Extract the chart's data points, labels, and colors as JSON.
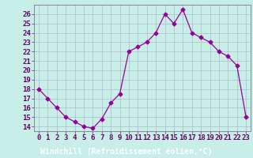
{
  "x": [
    0,
    1,
    2,
    3,
    4,
    5,
    6,
    7,
    8,
    9,
    10,
    11,
    12,
    13,
    14,
    15,
    16,
    17,
    18,
    19,
    20,
    21,
    22,
    23
  ],
  "y": [
    18,
    17,
    16,
    15,
    14.5,
    14,
    13.8,
    14.8,
    16.5,
    17.5,
    22,
    22.5,
    23,
    24,
    26,
    25,
    26.5,
    24,
    23.5,
    23,
    22,
    21.5,
    20.5,
    15
  ],
  "line_color": "#990099",
  "marker": "D",
  "marker_size": 2.5,
  "bg_color": "#c8eee8",
  "grid_color": "#b0b8cc",
  "xlabel": "Windchill (Refroidissement éolien,°C)",
  "xlabel_color": "#ffffff",
  "xlabel_bg": "#880088",
  "ylabel_ticks": [
    14,
    15,
    16,
    17,
    18,
    19,
    20,
    21,
    22,
    23,
    24,
    25,
    26
  ],
  "ylim": [
    13.5,
    27.0
  ],
  "xlim": [
    -0.5,
    23.5
  ],
  "xtick_labels": [
    "0",
    "1",
    "2",
    "3",
    "4",
    "5",
    "6",
    "7",
    "8",
    "9",
    "10",
    "11",
    "12",
    "13",
    "14",
    "15",
    "16",
    "17",
    "18",
    "19",
    "20",
    "21",
    "22",
    "23"
  ],
  "tick_fontsize": 6.5,
  "label_fontsize": 7.0
}
